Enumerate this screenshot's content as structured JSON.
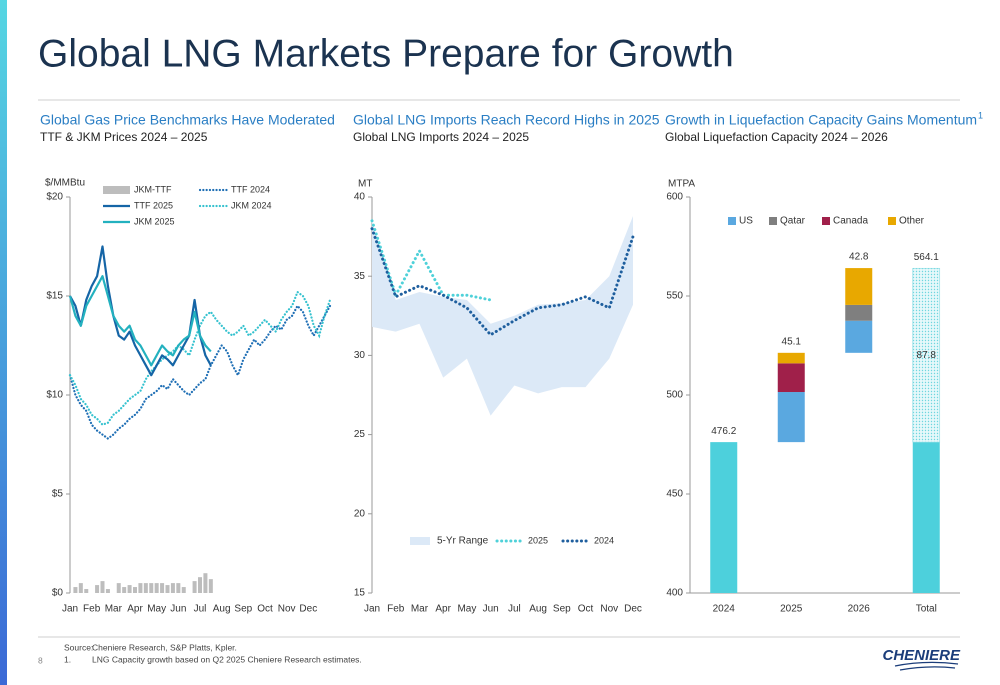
{
  "title": "Global LNG Markets Prepare for Growth",
  "footer": {
    "source_label": "Source:",
    "source": "Cheniere Research, S&P Platts, Kpler.",
    "note_number": "1.",
    "note": "LNG Capacity growth based on Q2 2025 Cheniere Research estimates."
  },
  "page_number": "8",
  "logo": "CHENIERE",
  "chart_data": [
    {
      "type": "line",
      "title": "Global Gas Price Benchmarks Have Moderated",
      "subtitle": "TTF & JKM Prices 2024 – 2025",
      "ylabel": "$/MMBtu",
      "grid": false,
      "xlim": [
        0,
        12
      ],
      "xticks": [
        {
          "value": 0,
          "label": "Jan"
        },
        {
          "value": 1,
          "label": "Feb"
        },
        {
          "value": 2,
          "label": "Mar"
        },
        {
          "value": 3,
          "label": "Apr"
        },
        {
          "value": 4,
          "label": "May"
        },
        {
          "value": 5,
          "label": "Jun"
        },
        {
          "value": 6,
          "label": "Jul"
        },
        {
          "value": 7,
          "label": "Aug"
        },
        {
          "value": 8,
          "label": "Sep"
        },
        {
          "value": 9,
          "label": "Oct"
        },
        {
          "value": 10,
          "label": "Nov"
        },
        {
          "value": 11,
          "label": "Dec"
        }
      ],
      "ylim": [
        0,
        20
      ],
      "yticks": [
        {
          "value": 0,
          "label": "$0"
        },
        {
          "value": 5,
          "label": "$5"
        },
        {
          "value": 10,
          "label": "$10"
        },
        {
          "value": 15,
          "label": "$15"
        },
        {
          "value": 20,
          "label": "$20"
        }
      ],
      "x": [
        0,
        0.25,
        0.5,
        0.75,
        1,
        1.25,
        1.5,
        1.75,
        2,
        2.25,
        2.5,
        2.75,
        3,
        3.25,
        3.5,
        3.75,
        4,
        4.25,
        4.5,
        4.75,
        5,
        5.25,
        5.5,
        5.75,
        6,
        6.25,
        6.5,
        6.75,
        7,
        7.25,
        7.5,
        7.75,
        8,
        8.25,
        8.5,
        8.75,
        9,
        9.25,
        9.5,
        9.75,
        10,
        10.25,
        10.5,
        10.75,
        11,
        11.25,
        11.5,
        11.75,
        12
      ],
      "series": [
        {
          "name": "JKM-TTF",
          "color": "#bdbdbd",
          "style": "bars",
          "values": [
            0,
            0.3,
            0.5,
            0.2,
            0,
            0.4,
            0.6,
            0.2,
            0,
            0.5,
            0.3,
            0.4,
            0.3,
            0.5,
            0.5,
            0.5,
            0.5,
            0.5,
            0.4,
            0.5,
            0.5,
            0.3,
            0,
            0.6,
            0.8,
            1,
            0.7,
            null,
            null,
            null,
            null,
            null,
            null,
            null,
            null,
            null,
            null,
            null,
            null,
            null,
            null,
            null,
            null,
            null,
            null,
            null,
            null,
            null,
            null
          ]
        },
        {
          "name": "TTF 2024",
          "color": "#1f6fb5",
          "style": "dotted",
          "values": [
            11,
            10,
            9.5,
            9.2,
            8.5,
            8.2,
            8,
            7.8,
            8,
            8.3,
            8.5,
            8.8,
            9,
            9.3,
            9.8,
            10,
            10.2,
            10.5,
            10.3,
            10.8,
            10.5,
            10.2,
            10,
            10.3,
            10.6,
            10.8,
            11.5,
            12,
            12.5,
            12.2,
            11.5,
            11,
            11.8,
            12.3,
            12.8,
            12.5,
            12.8,
            13.2,
            13.5,
            13.3,
            13.8,
            14,
            14.5,
            14.2,
            13.5,
            13,
            13.5,
            14,
            14.5
          ]
        },
        {
          "name": "JKM 2024",
          "color": "#36c2cf",
          "style": "dotted",
          "values": [
            11,
            10.5,
            9.8,
            9.5,
            9,
            8.8,
            8.5,
            8.6,
            9,
            9.2,
            9.5,
            9.8,
            10,
            10.2,
            10.8,
            11.2,
            11.5,
            11.8,
            12,
            12.2,
            12.5,
            12.3,
            12,
            12.8,
            13.5,
            14,
            14.2,
            13.8,
            13.5,
            13.2,
            13,
            13.2,
            13.5,
            13,
            13.2,
            13.5,
            13.8,
            13.5,
            13.2,
            13.8,
            14.2,
            14.5,
            15.2,
            15,
            14.5,
            13.5,
            13,
            14,
            14.8
          ]
        },
        {
          "name": "TTF 2025",
          "color": "#1565a6",
          "style": "solid",
          "values": [
            15,
            14.5,
            13.5,
            14.8,
            15.5,
            16,
            17.5,
            15.5,
            14,
            13,
            12.8,
            13.2,
            12.5,
            12,
            11.5,
            11,
            11.5,
            12,
            11.8,
            11.5,
            12,
            12.5,
            13,
            14.8,
            13,
            12,
            11.5,
            null,
            null,
            null,
            null,
            null,
            null,
            null,
            null,
            null,
            null,
            null,
            null,
            null,
            null,
            null,
            null,
            null,
            null,
            null,
            null,
            null,
            null
          ]
        },
        {
          "name": "JKM 2025",
          "color": "#23b1bf",
          "style": "solid",
          "values": [
            15,
            14,
            13.5,
            14.5,
            15,
            15.5,
            16,
            15,
            14,
            13.5,
            13.2,
            13.5,
            12.8,
            12.5,
            12,
            11.5,
            12,
            12.5,
            12.2,
            12,
            12.5,
            12.8,
            13,
            14.2,
            13,
            12.5,
            12.2,
            null,
            null,
            null,
            null,
            null,
            null,
            null,
            null,
            null,
            null,
            null,
            null,
            null,
            null,
            null,
            null,
            null,
            null,
            null,
            null,
            null,
            null
          ]
        }
      ]
    },
    {
      "type": "line",
      "title": "Global LNG Imports Reach Record Highs in 2025",
      "subtitle": "Global LNG Imports 2024 – 2025",
      "ylabel": "MT",
      "grid": false,
      "categories": [
        "Jan",
        "Feb",
        "Mar",
        "Apr",
        "May",
        "Jun",
        "Jul",
        "Aug",
        "Sep",
        "Oct",
        "Nov",
        "Dec"
      ],
      "ylim": [
        15,
        40
      ],
      "yticks": [
        15,
        20,
        25,
        30,
        35,
        40
      ],
      "range": {
        "name": "5-Yr Range",
        "color": "#dce9f7",
        "low": [
          31.8,
          31.5,
          32,
          28.6,
          29.8,
          26.2,
          28.1,
          27.6,
          28,
          28,
          29.8,
          33.2
        ],
        "high": [
          38.5,
          33.5,
          34,
          33.7,
          33.5,
          32,
          32.5,
          33.2,
          33.3,
          33.5,
          35,
          38.8
        ]
      },
      "series": [
        {
          "name": "2025",
          "color": "#4fd1d9",
          "style": "dotted",
          "values": [
            38.5,
            33.8,
            36.6,
            33.8,
            33.8,
            33.5,
            null,
            null,
            null,
            null,
            null,
            null
          ]
        },
        {
          "name": "2024",
          "color": "#1f5f9e",
          "style": "dotted",
          "values": [
            38,
            33.7,
            34.4,
            33.8,
            33,
            31.3,
            32.2,
            33,
            33.2,
            33.7,
            33,
            37.5
          ]
        }
      ]
    },
    {
      "type": "waterfall",
      "title": "Growth in Liquefaction Capacity Gains Momentum",
      "title_note": "1",
      "subtitle": "Global Liquefaction Capacity 2024 – 2026",
      "ylabel": "MTPA",
      "grid": false,
      "categories": [
        "2024",
        "2025",
        "2026",
        "Total"
      ],
      "ylim": [
        400,
        600
      ],
      "yticks": [
        400,
        450,
        500,
        550,
        600
      ],
      "base": {
        "color": "#4dd0dc",
        "values": [
          476.2,
          null,
          null,
          476.2
        ]
      },
      "growth": {
        "color": "#4dd0dc",
        "values": [
          null,
          null,
          null,
          87.8
        ]
      },
      "series": [
        {
          "name": "US",
          "color": "#5aa8e0",
          "values": [
            null,
            25.3,
            16.2,
            null
          ]
        },
        {
          "name": "Qatar",
          "color": "#7f7f7f",
          "values": [
            null,
            null,
            8,
            null
          ]
        },
        {
          "name": "Canada",
          "color": "#a0204a",
          "values": [
            null,
            14.5,
            null,
            null
          ]
        },
        {
          "name": "Other",
          "color": "#e8a800",
          "values": [
            null,
            5.3,
            18.6,
            null
          ]
        }
      ],
      "labels": [
        476.2,
        45.1,
        42.8,
        564.1
      ]
    }
  ]
}
